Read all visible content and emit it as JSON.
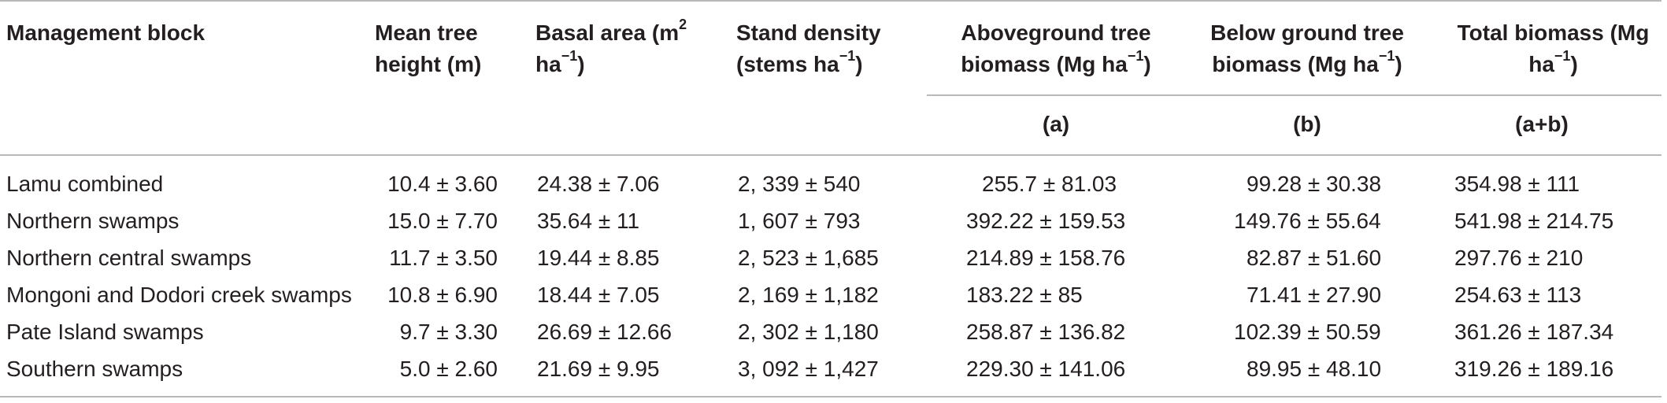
{
  "table": {
    "headers": {
      "management_block": "Management block",
      "mean_tree_height": "Mean tree height (m)",
      "basal_area_prefix": "Basal area (m",
      "basal_area_sup1": "2",
      "basal_area_mid": " ha",
      "basal_area_sup2": "−1",
      "basal_area_suffix": ")",
      "stand_density_prefix": "Stand density (stems ha",
      "stand_density_sup": "−1",
      "stand_density_suffix": ")",
      "aboveground_prefix": "Aboveground tree biomass (Mg ha",
      "aboveground_sup": "−1",
      "aboveground_suffix": ")",
      "belowground_prefix": "Below ground tree biomass (Mg ha",
      "belowground_sup": "−1",
      "belowground_suffix": ")",
      "total_prefix": "Total biomass (Mg ha",
      "total_sup": "−1",
      "total_suffix": ")",
      "sub_a": "(a)",
      "sub_b": "(b)",
      "sub_ab": "(a+b)"
    },
    "rows": [
      {
        "block": "Lamu combined",
        "height": "10.4 ± 3.60",
        "basal": "24.38 ± 7.06",
        "density": "2, 339 ± 540",
        "above": "255.7 ± 81.03",
        "below": "99.28 ± 30.38",
        "total": "354.98 ± 111"
      },
      {
        "block": "Northern swamps",
        "height": "15.0 ± 7.70",
        "basal": "35.64 ± 11",
        "density": "1, 607 ± 793",
        "above": "392.22 ± 159.53",
        "below": "149.76 ± 55.64",
        "total": "541.98 ± 214.75"
      },
      {
        "block": "Northern central swamps",
        "height": "11.7 ± 3.50",
        "basal": "19.44 ± 8.85",
        "density": "2, 523 ± 1,685",
        "above": "214.89 ± 158.76",
        "below": "82.87 ± 51.60",
        "total": "297.76 ± 210"
      },
      {
        "block": "Mongoni and Dodori creek swamps",
        "height": "10.8 ± 6.90",
        "basal": "18.44 ± 7.05",
        "density": "2, 169 ± 1,182",
        "above": "183.22 ± 85",
        "below": "71.41 ± 27.90",
        "total": "254.63 ± 113"
      },
      {
        "block": "Pate Island swamps",
        "height": "9.7 ± 3.30",
        "basal": "26.69 ± 12.66",
        "density": "2, 302 ± 1,180",
        "above": "258.87 ± 136.82",
        "below": "102.39 ± 50.59",
        "total": "361.26 ± 187.34"
      },
      {
        "block": "Southern swamps",
        "height": "5.0 ± 2.60",
        "basal": "21.69 ± 9.95",
        "density": "3, 092 ± 1,427",
        "above": "229.30 ± 141.06",
        "below": "89.95 ± 48.10",
        "total": "319.26 ± 189.16"
      }
    ]
  }
}
